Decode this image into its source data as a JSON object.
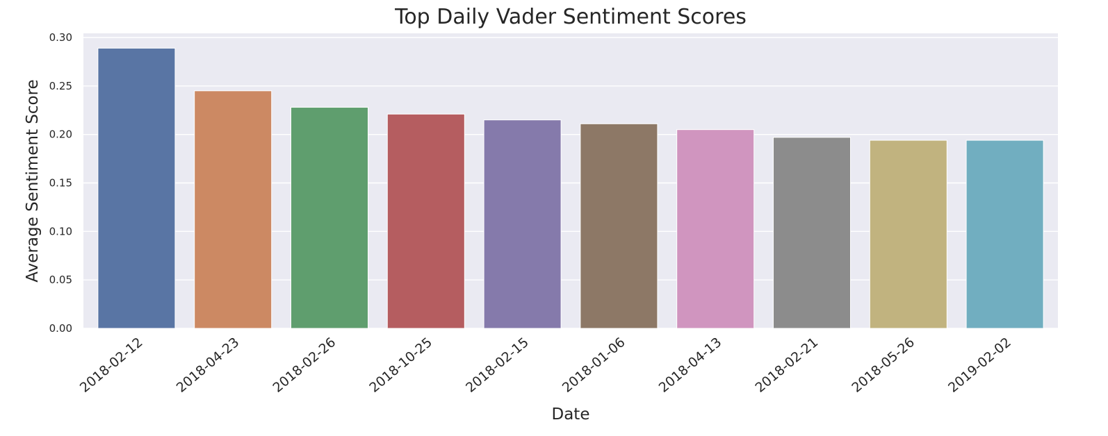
{
  "chart_data": {
    "type": "bar",
    "title": "Top Daily Vader Sentiment Scores",
    "xlabel": "Date",
    "ylabel": "Average Sentiment Score",
    "categories": [
      "2018-02-12",
      "2018-04-23",
      "2018-02-26",
      "2018-10-25",
      "2018-02-15",
      "2018-01-06",
      "2018-04-13",
      "2018-02-21",
      "2018-05-26",
      "2019-02-02"
    ],
    "values": [
      0.289,
      0.245,
      0.228,
      0.221,
      0.215,
      0.211,
      0.205,
      0.197,
      0.194,
      0.194
    ],
    "colors": [
      "#5975a4",
      "#cc8963",
      "#5f9e6e",
      "#b55d60",
      "#857aab",
      "#8d7866",
      "#d095bf",
      "#8c8c8c",
      "#c1b37f",
      "#71aec0"
    ],
    "ylim": [
      0,
      0.3
    ],
    "yticks": [
      "0.00",
      "0.05",
      "0.10",
      "0.15",
      "0.20",
      "0.25",
      "0.30"
    ],
    "grid": true,
    "legend": "none",
    "background": "#eaeaf2"
  }
}
